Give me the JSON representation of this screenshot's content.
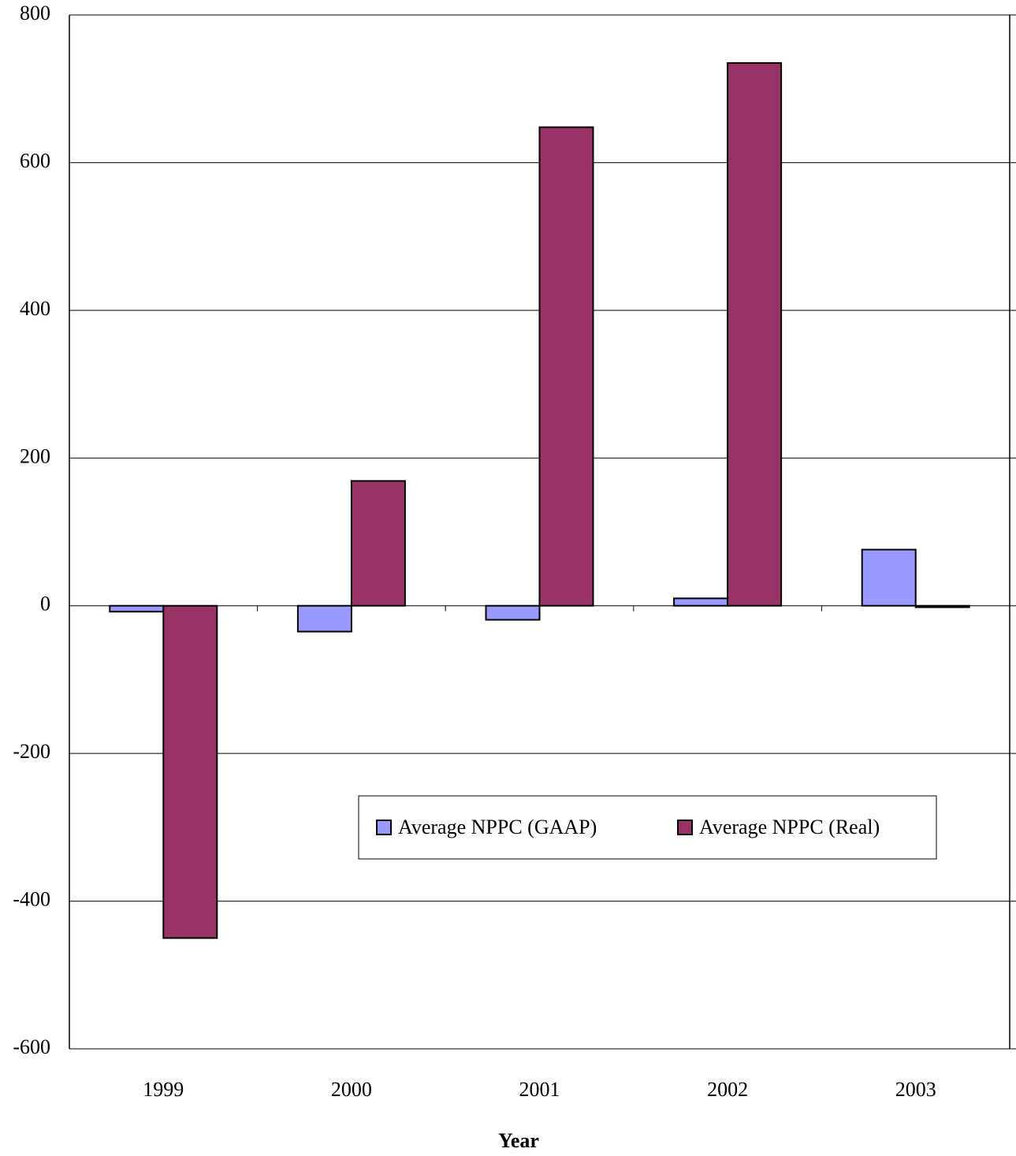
{
  "chart_data": {
    "type": "bar",
    "x_label": "Year",
    "categories": [
      "1999",
      "2000",
      "2001",
      "2002",
      "2003"
    ],
    "series": [
      {
        "name": "Average NPPC (GAAP)",
        "color": "#9999ff",
        "values": [
          -8,
          -35,
          -19,
          10,
          76
        ]
      },
      {
        "name": "Average NPPC (Real)",
        "color": "#993366",
        "values": [
          -450,
          169,
          648,
          735,
          -2
        ]
      }
    ],
    "ylim": [
      -600,
      800
    ],
    "yticks": [
      -600,
      -400,
      -200,
      0,
      200,
      400,
      600,
      800
    ],
    "grid": true
  }
}
